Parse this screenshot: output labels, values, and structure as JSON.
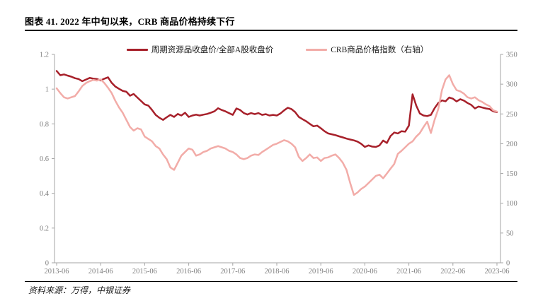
{
  "title": "图表 41. 2022 年中旬以来，CRB 商品价格持续下行",
  "source_note": "资料来源：万得，中银证券",
  "colors": {
    "ratio_line": "#A7202A",
    "crb_line": "#F2ACA8",
    "axis_line": "#A6A6A6",
    "tick_text": "#7F7F7F"
  },
  "chart_data": {
    "type": "line",
    "title": "图表 41. 2022 年中旬以来，CRB 商品价格持续下行",
    "x_start": "2013-06",
    "x_end": "2023-06",
    "x_interval": "monthly",
    "x_tick_labels": [
      "2013-06",
      "2014-06",
      "2015-06",
      "2016-06",
      "2017-06",
      "2018-06",
      "2019-06",
      "2020-06",
      "2021-06",
      "2022-06",
      "2023-06"
    ],
    "left_axis": {
      "min": 0,
      "max": 1.2,
      "tick_labels": [
        "0",
        "0.2",
        "0.4",
        "0.6",
        "0.8",
        "1",
        "1.2"
      ]
    },
    "right_axis": {
      "min": 0,
      "max": 350,
      "tick_labels": [
        "0",
        "50",
        "100",
        "150",
        "200",
        "250",
        "300",
        "350"
      ]
    },
    "grid": "off",
    "legend_position": "top-center",
    "series": [
      {
        "name": "周期资源品收盘价/全部A股收盘价",
        "axis": "left",
        "color": "#A7202A",
        "values": [
          1.105,
          1.08,
          1.085,
          1.078,
          1.072,
          1.063,
          1.058,
          1.046,
          1.055,
          1.065,
          1.06,
          1.058,
          1.05,
          1.06,
          1.068,
          1.036,
          1.015,
          1.002,
          0.99,
          0.985,
          0.962,
          0.972,
          0.952,
          0.932,
          0.912,
          0.905,
          0.88,
          0.852,
          0.835,
          0.823,
          0.838,
          0.852,
          0.84,
          0.857,
          0.848,
          0.864,
          0.84,
          0.848,
          0.853,
          0.848,
          0.853,
          0.857,
          0.864,
          0.872,
          0.89,
          0.88,
          0.872,
          0.862,
          0.852,
          0.889,
          0.88,
          0.862,
          0.854,
          0.862,
          0.856,
          0.862,
          0.852,
          0.856,
          0.848,
          0.852,
          0.848,
          0.86,
          0.878,
          0.893,
          0.885,
          0.868,
          0.84,
          0.827,
          0.815,
          0.8,
          0.786,
          0.79,
          0.775,
          0.758,
          0.745,
          0.74,
          0.735,
          0.728,
          0.722,
          0.715,
          0.71,
          0.705,
          0.698,
          0.685,
          0.667,
          0.676,
          0.669,
          0.667,
          0.676,
          0.704,
          0.69,
          0.73,
          0.75,
          0.745,
          0.758,
          0.755,
          0.79,
          0.97,
          0.905,
          0.86,
          0.848,
          0.845,
          0.852,
          0.89,
          0.92,
          0.935,
          0.93,
          0.952,
          0.945,
          0.929,
          0.942,
          0.934,
          0.92,
          0.909,
          0.889,
          0.9,
          0.894,
          0.889,
          0.885,
          0.872,
          0.868
        ]
      },
      {
        "name": "CRB商品价格指数（右轴）",
        "axis": "right",
        "color": "#F2ACA8",
        "values": [
          293,
          285,
          278,
          276,
          278,
          280,
          288,
          297,
          302,
          305,
          307,
          306,
          308,
          302,
          294,
          285,
          272,
          261,
          252,
          240,
          228,
          222,
          226,
          224,
          212,
          208,
          204,
          196,
          192,
          182,
          174,
          160,
          156,
          168,
          180,
          186,
          192,
          190,
          180,
          182,
          186,
          188,
          192,
          194,
          196,
          194,
          192,
          188,
          186,
          182,
          176,
          174,
          176,
          180,
          182,
          181,
          186,
          190,
          194,
          198,
          200,
          203,
          206,
          204,
          200,
          194,
          178,
          171,
          176,
          182,
          176,
          177,
          171,
          176,
          177,
          180,
          182,
          176,
          168,
          156,
          134,
          114,
          118,
          124,
          128,
          134,
          140,
          146,
          148,
          142,
          150,
          158,
          166,
          183,
          188,
          194,
          200,
          204,
          212,
          218,
          228,
          237,
          218,
          240,
          258,
          290,
          308,
          315,
          300,
          290,
          288,
          284,
          278,
          276,
          278,
          273,
          270,
          266,
          263,
          256,
          254
        ]
      }
    ]
  }
}
